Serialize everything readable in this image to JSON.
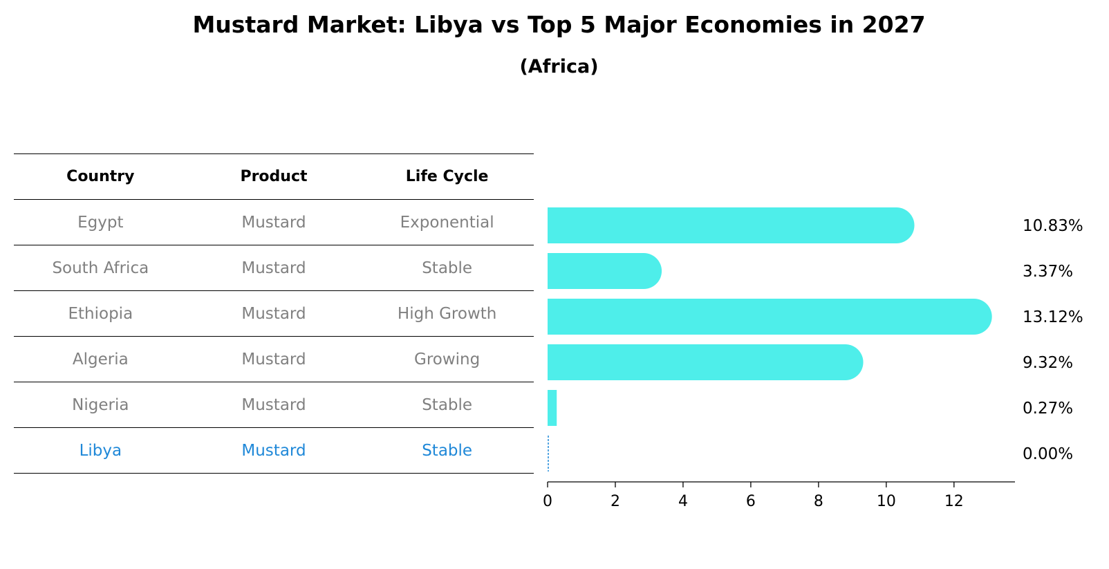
{
  "chart_data": {
    "type": "bar",
    "orientation": "horizontal",
    "title": "Mustard Market: Libya vs Top 5 Major Economies in 2027",
    "subtitle": "(Africa)",
    "table": {
      "columns": [
        "Country",
        "Product",
        "Life Cycle"
      ],
      "rows": [
        [
          "Egypt",
          "Mustard",
          "Exponential"
        ],
        [
          "South Africa",
          "Mustard",
          "Stable"
        ],
        [
          "Ethiopia",
          "Mustard",
          "High Growth"
        ],
        [
          "Algeria",
          "Mustard",
          "Growing"
        ],
        [
          "Nigeria",
          "Mustard",
          "Stable"
        ],
        [
          "Libya",
          "Mustard",
          "Stable"
        ]
      ],
      "highlight_row": 5
    },
    "categories": [
      "Egypt",
      "South Africa",
      "Ethiopia",
      "Algeria",
      "Nigeria",
      "Libya"
    ],
    "values": [
      10.83,
      3.37,
      13.12,
      9.32,
      0.27,
      0.0
    ],
    "value_labels": [
      "10.83%",
      "3.37%",
      "13.12%",
      "9.32%",
      "0.27%",
      "0.00%"
    ],
    "xlim": [
      0,
      13.8
    ],
    "xticks": [
      0,
      2,
      4,
      6,
      8,
      10,
      12
    ],
    "grid": false,
    "colors": {
      "bar": "#4eeeea",
      "highlight_text": "#1f88d8",
      "muted_text": "#808080"
    }
  }
}
